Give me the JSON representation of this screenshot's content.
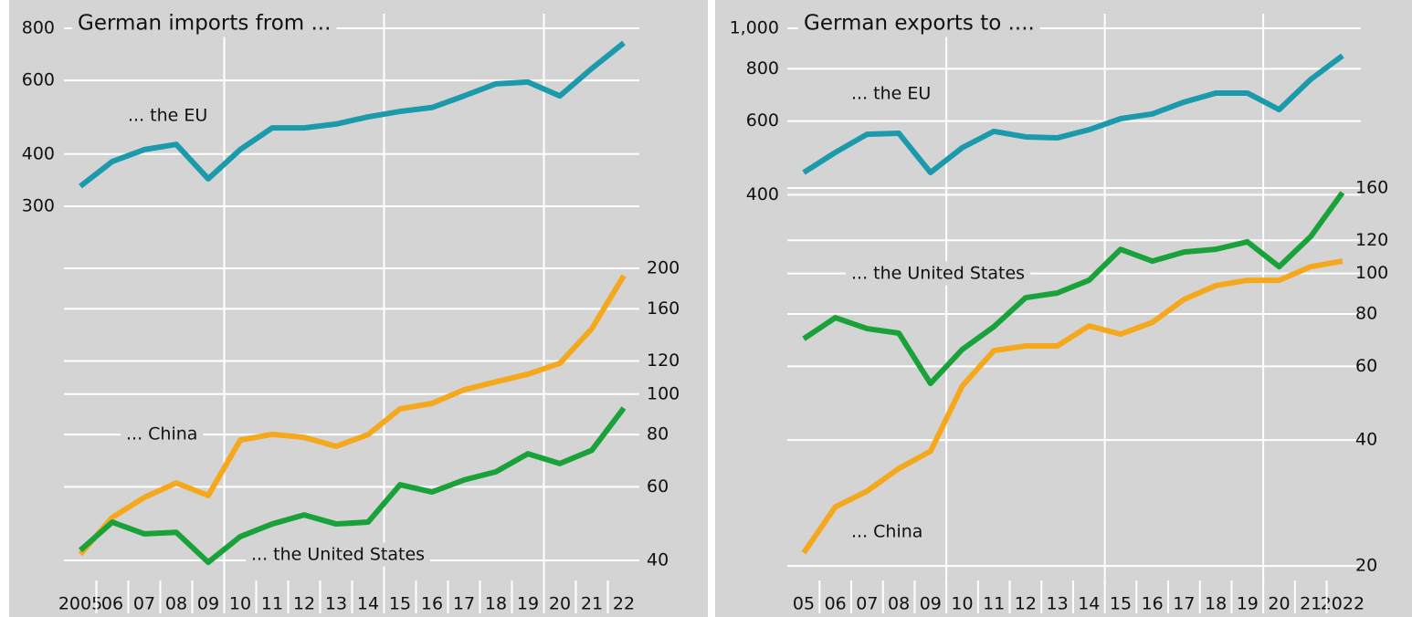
{
  "chart_data": [
    {
      "type": "line",
      "title": "German imports from ...",
      "log_scale": true,
      "grid": true,
      "categories": [
        "2005",
        "06",
        "07",
        "08",
        "09",
        "10",
        "11",
        "12",
        "13",
        "14",
        "15",
        "16",
        "17",
        "18",
        "19",
        "20",
        "21",
        "22"
      ],
      "ylim": [
        37.4,
        889
      ],
      "yticks": [
        300,
        400,
        600,
        800
      ],
      "y2lim": [
        35.1,
        834
      ],
      "y2ticks": [
        40,
        60,
        80,
        100,
        120,
        160,
        200
      ],
      "series": [
        {
          "name": "... the EU",
          "color": "#1a9aab",
          "values": [
            335,
            384,
            410,
            422,
            349,
            410,
            462,
            462,
            472,
            491,
            506,
            517,
            551,
            589,
            595,
            551,
            641,
            738
          ]
        },
        {
          "name": "... China",
          "color": "#f5a81c",
          "axis": "y2",
          "values": [
            41.4,
            50.7,
            56.6,
            61.3,
            57.2,
            77.6,
            80.1,
            78.8,
            75.0,
            80.0,
            92.2,
            95.0,
            102.4,
            107,
            111.6,
            118.5,
            143.5,
            192
          ]
        },
        {
          "name": "... the United States",
          "color": "#1aa23a",
          "axis": "y2",
          "values": [
            42.3,
            49.4,
            46.3,
            46.7,
            39.6,
            45.6,
            48.9,
            51.4,
            48.9,
            49.4,
            60.7,
            58.3,
            62.3,
            65.2,
            72.0,
            68.2,
            73.4,
            92.6
          ]
        }
      ]
    },
    {
      "type": "line",
      "title": "German exports to ....",
      "log_scale": true,
      "grid": true,
      "categories": [
        "05",
        "06",
        "07",
        "08",
        "09",
        "10",
        "11",
        "12",
        "13",
        "14",
        "15",
        "16",
        "17",
        "18",
        "19",
        "20",
        "21",
        "2022"
      ],
      "ylim": [
        46.9,
        1111
      ],
      "yticks": [
        400,
        600,
        800,
        {
          "value": 1000,
          "label": "1,000"
        }
      ],
      "y2lim": [
        18.1,
        428
      ],
      "y2ticks": [
        20,
        40,
        60,
        80,
        100,
        120,
        160
      ],
      "series": [
        {
          "name": "... the EU",
          "color": "#1a9aab",
          "values": [
            452,
            505,
            558,
            561,
            452,
            518,
            567,
            550,
            547,
            572,
            608,
            624,
            666,
            700,
            700,
            639,
            755,
            860
          ]
        },
        {
          "name": "... the United States",
          "color": "#1aa23a",
          "axis": "y2",
          "values": [
            69.8,
            78.4,
            73.8,
            72.0,
            54.6,
            65.8,
            74.6,
            87.5,
            89.8,
            96.3,
            114.2,
            107,
            112.5,
            114.2,
            119,
            103.8,
            122.6,
            156
          ]
        },
        {
          "name": "... China",
          "color": "#f5a81c",
          "axis": "y2",
          "values": [
            21.5,
            27.7,
            30.2,
            34.2,
            37.6,
            53.8,
            65.4,
            67.1,
            67.1,
            74.9,
            71.6,
            76.4,
            86.7,
            93.5,
            96.3,
            96.3,
            103.8,
            107
          ]
        }
      ]
    }
  ]
}
